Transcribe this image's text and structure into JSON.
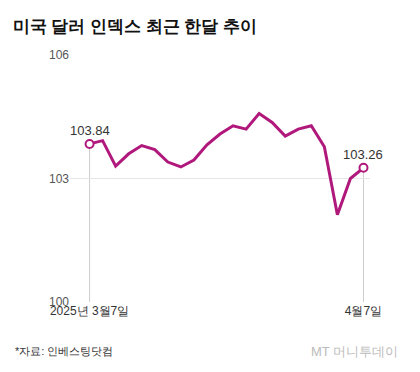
{
  "chart_data": {
    "type": "line",
    "title": "미국 달러 인덱스 최근 한달 추이",
    "source": "*자료: 인베스팅닷컴",
    "watermark": "MT 머니투데이",
    "categories": [
      "2025년 3월7일",
      null,
      null,
      null,
      null,
      null,
      null,
      null,
      null,
      null,
      null,
      null,
      null,
      null,
      null,
      null,
      null,
      null,
      null,
      null,
      null,
      "4월7일"
    ],
    "values": [
      103.84,
      103.92,
      103.3,
      103.6,
      103.8,
      103.7,
      103.4,
      103.28,
      103.45,
      103.82,
      104.08,
      104.28,
      104.2,
      104.58,
      104.36,
      104.03,
      104.2,
      104.28,
      103.77,
      102.12,
      103.0,
      103.26
    ],
    "value_labels": [
      "103.84",
      null,
      null,
      null,
      null,
      null,
      null,
      null,
      null,
      null,
      null,
      null,
      null,
      null,
      null,
      null,
      null,
      null,
      null,
      null,
      null,
      "103.26"
    ],
    "data_labels": true,
    "color": "#b0187c",
    "ylim": [
      100,
      106
    ],
    "yticks": [
      100,
      103,
      106
    ],
    "grid": true
  }
}
